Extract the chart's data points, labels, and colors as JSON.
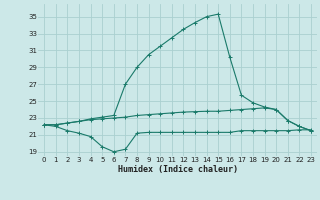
{
  "xlabel": "Humidex (Indice chaleur)",
  "bg_color": "#cce8e8",
  "grid_color": "#aad0d0",
  "line_color": "#1a7a6a",
  "ylim": [
    18.5,
    36.5
  ],
  "xlim": [
    -0.5,
    23.5
  ],
  "yticks": [
    19,
    21,
    23,
    25,
    27,
    29,
    31,
    33,
    35
  ],
  "xticks": [
    0,
    1,
    2,
    3,
    4,
    5,
    6,
    7,
    8,
    9,
    10,
    11,
    12,
    13,
    14,
    15,
    16,
    17,
    18,
    19,
    20,
    21,
    22,
    23
  ],
  "line1_x": [
    0,
    1,
    2,
    3,
    4,
    5,
    6,
    7,
    8,
    9,
    10,
    11,
    12,
    13,
    14,
    15,
    16,
    17,
    18,
    19,
    20,
    21,
    22,
    23
  ],
  "line1_y": [
    22.2,
    22.0,
    21.5,
    21.2,
    20.8,
    19.6,
    19.0,
    19.3,
    21.2,
    21.3,
    21.3,
    21.3,
    21.3,
    21.3,
    21.3,
    21.3,
    21.3,
    21.5,
    21.5,
    21.5,
    21.5,
    21.5,
    21.6,
    21.6
  ],
  "line2_x": [
    0,
    1,
    2,
    3,
    4,
    5,
    6,
    7,
    8,
    9,
    10,
    11,
    12,
    13,
    14,
    15,
    16,
    17,
    18,
    19,
    20,
    21,
    22,
    23
  ],
  "line2_y": [
    22.2,
    22.2,
    22.4,
    22.6,
    22.8,
    22.9,
    23.0,
    23.1,
    23.3,
    23.4,
    23.5,
    23.6,
    23.7,
    23.75,
    23.8,
    23.8,
    23.9,
    24.0,
    24.1,
    24.2,
    24.0,
    22.7,
    22.0,
    21.5
  ],
  "line3_x": [
    0,
    1,
    2,
    3,
    4,
    5,
    6,
    7,
    8,
    9,
    10,
    11,
    12,
    13,
    14,
    15,
    16,
    17,
    18,
    19,
    20,
    21,
    22,
    23
  ],
  "line3_y": [
    22.2,
    22.2,
    22.4,
    22.6,
    22.9,
    23.1,
    23.3,
    27.0,
    29.0,
    30.5,
    31.5,
    32.5,
    33.5,
    34.3,
    35.0,
    35.3,
    30.2,
    25.7,
    24.8,
    24.3,
    24.0,
    22.7,
    22.0,
    21.5
  ]
}
